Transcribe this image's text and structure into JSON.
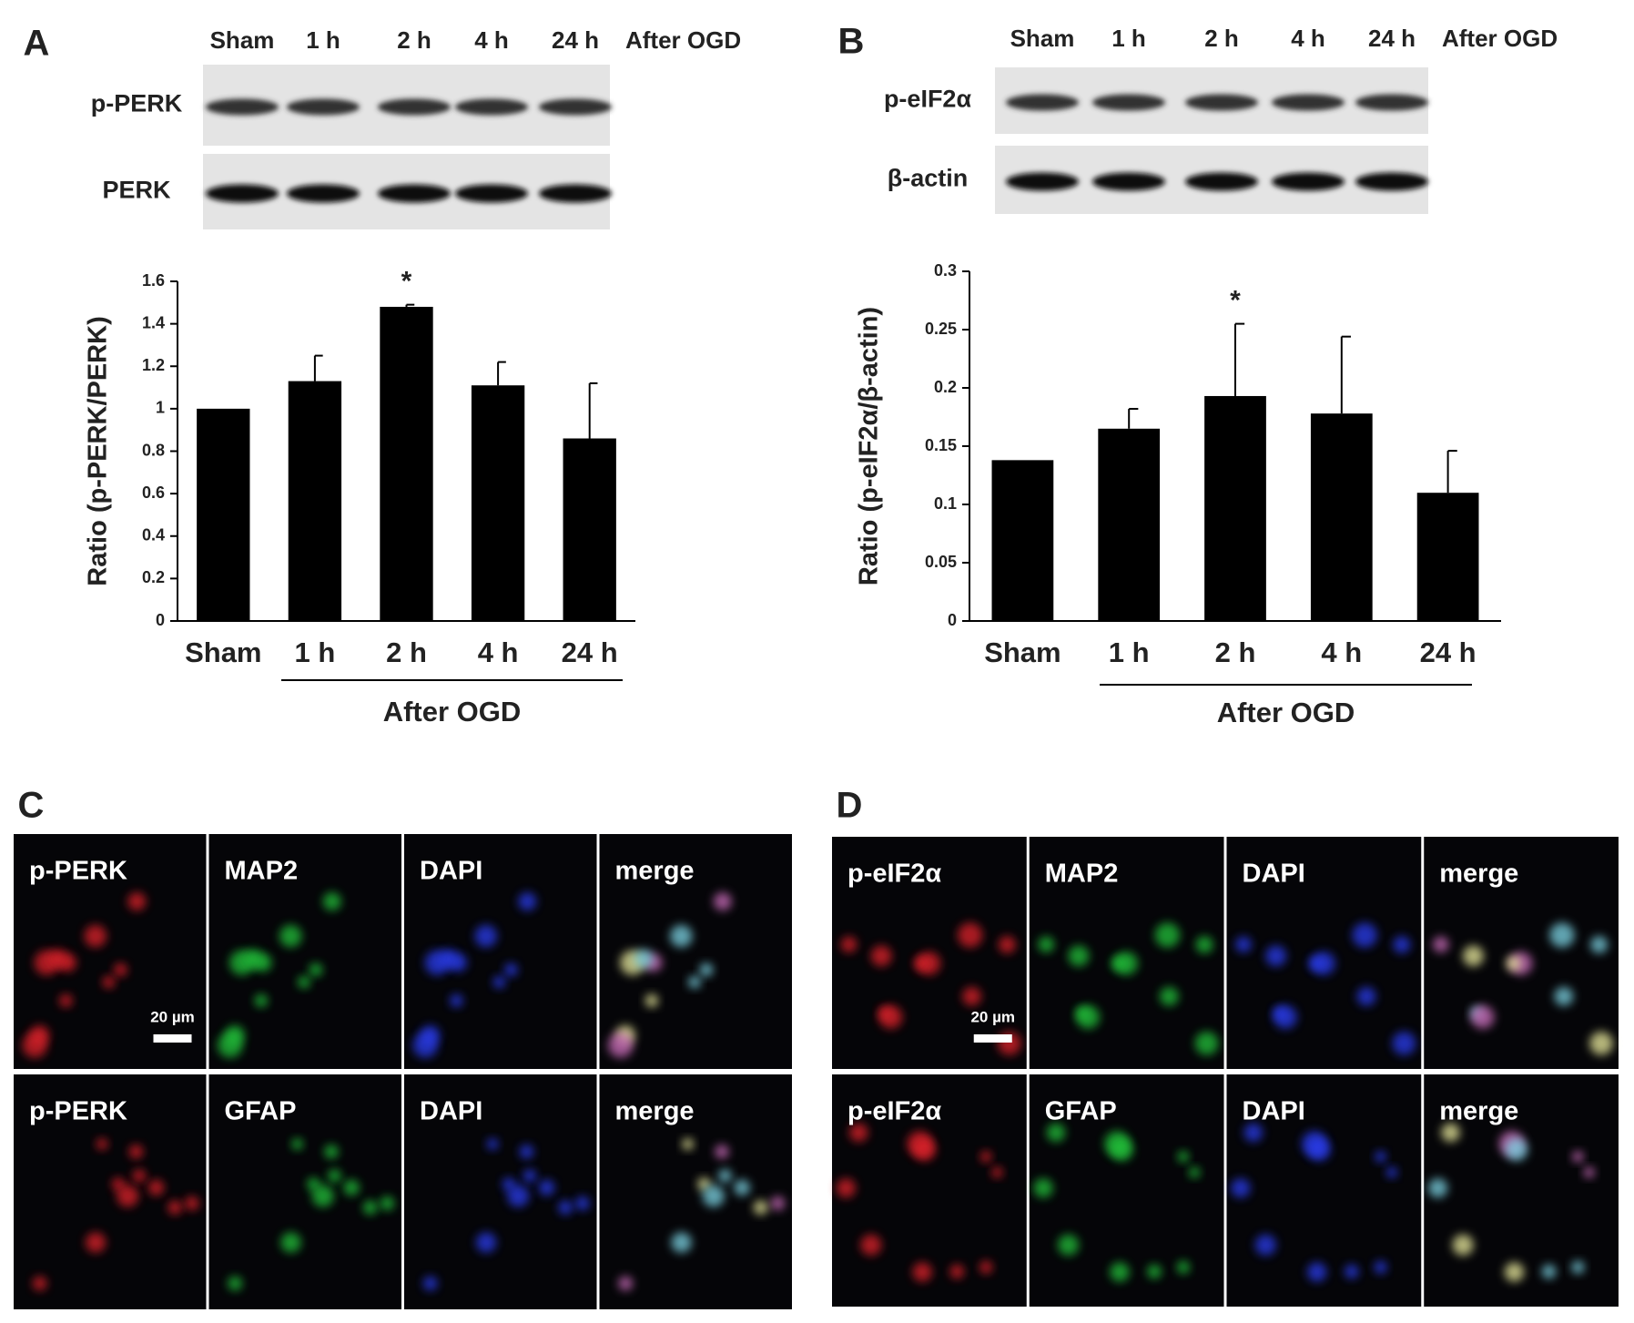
{
  "chart_data": [
    {
      "type": "bar",
      "panel": "A",
      "ylabel": "Ratio (p-PERK/PERK)",
      "categories": [
        "Sham",
        "1 h",
        "2 h",
        "4 h",
        "24 h"
      ],
      "values": [
        1.0,
        1.13,
        1.48,
        1.11,
        0.86
      ],
      "errors": [
        null,
        0.12,
        0.01,
        0.11,
        0.26
      ],
      "color": "#000000",
      "ylim": [
        0,
        1.6
      ],
      "yticks": [
        0,
        0.2,
        0.4,
        0.6,
        0.8,
        1,
        1.2,
        1.4,
        1.6
      ],
      "group_label": "After OGD",
      "annotations": [
        "*"
      ]
    },
    {
      "type": "bar",
      "panel": "B",
      "ylabel": "Ratio (p-eIF2α/β-actin)",
      "categories": [
        "Sham",
        "1 h",
        "2 h",
        "4 h",
        "24 h"
      ],
      "values": [
        0.138,
        0.165,
        0.193,
        0.178,
        0.11
      ],
      "errors": [
        null,
        0.017,
        0.062,
        0.066,
        0.036
      ],
      "color": "#000000",
      "ylim": [
        0,
        0.3
      ],
      "yticks": [
        0,
        0.05,
        0.1,
        0.15,
        0.2,
        0.25,
        0.3
      ],
      "group_label": "After OGD",
      "annotations": [
        "*"
      ]
    }
  ],
  "blots": [
    {
      "lanes": [
        "Sham",
        "1 h",
        "2 h",
        "4 h",
        "24 h"
      ],
      "lane_group": "After OGD",
      "rows": [
        "p-PERK",
        "PERK"
      ]
    },
    {
      "lanes": [
        "Sham",
        "1 h",
        "2 h",
        "4 h",
        "24 h"
      ],
      "lane_group": "After OGD",
      "rows": [
        "p-eIF2α",
        "β-actin"
      ]
    }
  ],
  "micrographs": [
    {
      "panel": "C",
      "rows": [
        [
          "p-PERK",
          "MAP2",
          "DAPI",
          "merge"
        ],
        [
          "p-PERK",
          "GFAP",
          "DAPI",
          "merge"
        ]
      ],
      "scale_bar": "20 µm"
    },
    {
      "panel": "D",
      "rows": [
        [
          "p-eIF2α",
          "MAP2",
          "DAPI",
          "merge"
        ],
        [
          "p-eIF2α",
          "GFAP",
          "DAPI",
          "merge"
        ]
      ],
      "scale_bar": "20 µm"
    }
  ]
}
